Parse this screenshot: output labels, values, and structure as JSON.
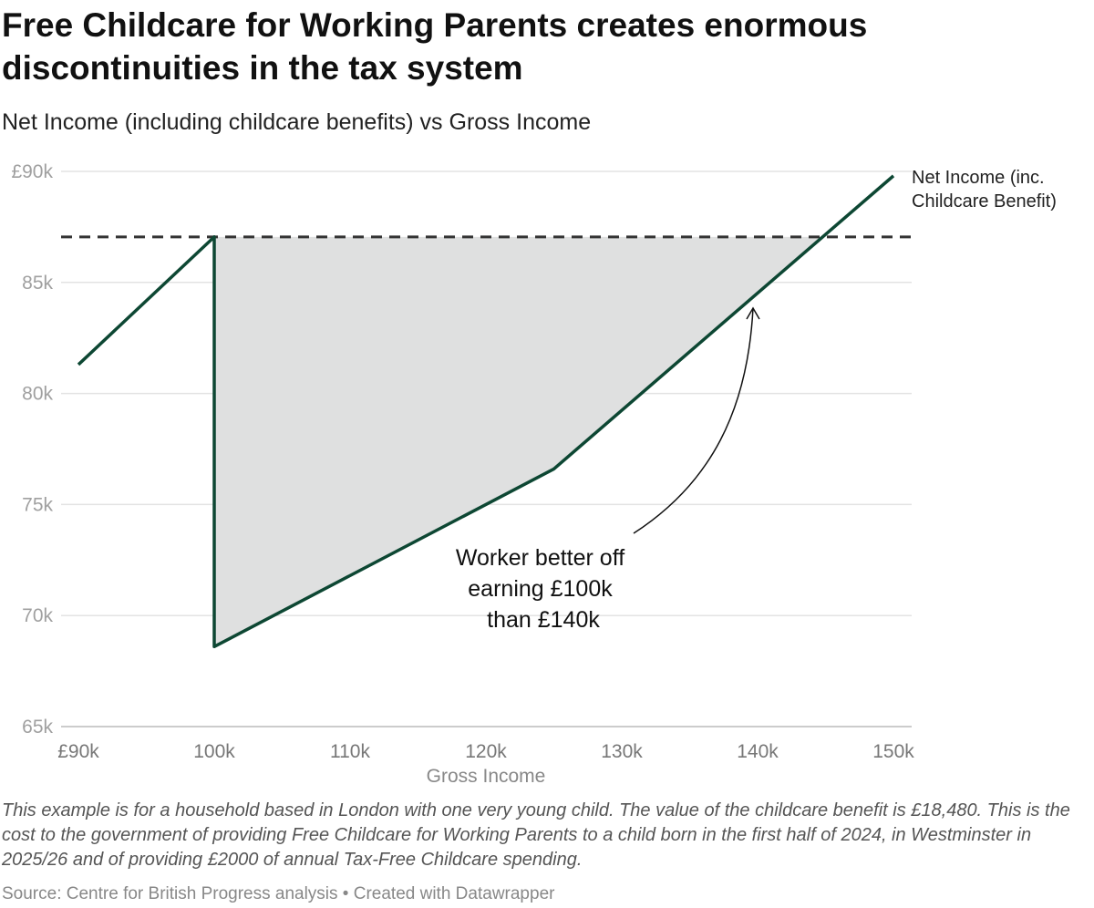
{
  "title": "Free Childcare for Working Parents creates enormous discontinuities in the tax system",
  "subtitle": "Net Income (including childcare benefits) vs Gross Income",
  "notes": "This example is for a household based in London with one very young child. The value of the childcare benefit is £18,480. This is the cost to the government of providing Free Childcare for Working Parents to a child born in the first half of 2024, in Westminster in 2025/26 and of providing £2000 of annual Tax-Free Childcare spending.",
  "source": "Source: Centre for British Progress analysis • Created with Datawrapper",
  "colors": {
    "line": "#0d4733",
    "fill": "#dfe0e0",
    "reference": "#333333",
    "grid": "#e3e3e3"
  },
  "chart_data": {
    "type": "line",
    "xlabel": "Gross Income",
    "ylabel": "",
    "xlim": [
      90000,
      150000
    ],
    "ylim": [
      65000,
      90000
    ],
    "grid": true,
    "x_ticks": [
      {
        "v": 90000,
        "label": "£90k"
      },
      {
        "v": 100000,
        "label": "100k"
      },
      {
        "v": 110000,
        "label": "110k"
      },
      {
        "v": 120000,
        "label": "120k"
      },
      {
        "v": 130000,
        "label": "130k"
      },
      {
        "v": 140000,
        "label": "140k"
      },
      {
        "v": 150000,
        "label": "150k"
      }
    ],
    "y_ticks": [
      {
        "v": 90000,
        "label": "£90k"
      },
      {
        "v": 85000,
        "label": "85k"
      },
      {
        "v": 80000,
        "label": "80k"
      },
      {
        "v": 75000,
        "label": "75k"
      },
      {
        "v": 70000,
        "label": "70k"
      },
      {
        "v": 65000,
        "label": "65k"
      }
    ],
    "series": [
      {
        "name": "Net Income (inc. Childcare Benefit)",
        "points": [
          [
            90000,
            81300
          ],
          [
            100000,
            87050
          ],
          [
            100000,
            68600
          ],
          [
            125000,
            76600
          ],
          [
            150000,
            89800
          ]
        ]
      }
    ],
    "reference_line": {
      "y": 87050,
      "style": "dashed"
    },
    "shaded_region": "between reference line and series from 100k to crossing",
    "series_label_lines": [
      "Net Income (inc.",
      "Childcare Benefit)"
    ],
    "annotation": {
      "lines": [
        "Worker better off",
        "earning £100k",
        "than £140k"
      ],
      "points_to_x": 140000
    }
  }
}
